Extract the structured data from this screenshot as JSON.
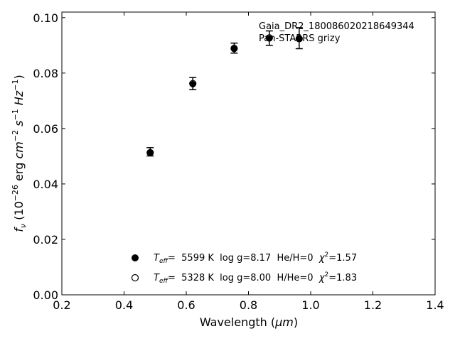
{
  "chart_data": {
    "type": "scatter",
    "xlabel_main": "Wavelength (",
    "xlabel_unit": "μm",
    "xlabel_close": ")",
    "ylabel_parts": {
      "f": "f",
      "nu": "ν",
      "open": " (10",
      "exp1": "−26",
      "erg": " erg ",
      "cm": "cm",
      "exp2": "−2",
      "s": " s",
      "exp3": "−1",
      "hz": " Hz",
      "exp4": "−1",
      "close": ")"
    },
    "xlim": [
      0.2,
      1.4
    ],
    "ylim": [
      0.0,
      0.102
    ],
    "x_ticks": [
      0.2,
      0.4,
      0.6,
      0.8,
      1.0,
      1.2,
      1.4
    ],
    "x_tick_labels": [
      "0.2",
      "0.4",
      "0.6",
      "0.8",
      "1.0",
      "1.2",
      "1.4"
    ],
    "y_ticks": [
      0.0,
      0.02,
      0.04,
      0.06,
      0.08,
      0.1
    ],
    "y_tick_labels": [
      "0.00",
      "0.02",
      "0.04",
      "0.06",
      "0.08",
      "0.10"
    ],
    "grid": false,
    "annotations": [
      "Gaia_DR2_180086020218649344",
      "Pan-STARRS grizy"
    ],
    "observed": {
      "x": [
        0.484,
        0.621,
        0.754,
        0.867,
        0.963
      ],
      "y": [
        0.0516,
        0.0762,
        0.089,
        0.0926,
        0.0926
      ],
      "yerr": [
        0.0015,
        0.0022,
        0.0018,
        0.0026,
        0.0038
      ]
    },
    "model_filled": {
      "x": [
        0.484,
        0.621,
        0.754,
        0.867,
        0.963
      ],
      "y": [
        0.0513,
        0.076,
        0.0887,
        0.0925,
        0.0923
      ]
    },
    "model_open": {
      "x": [
        0.484,
        0.621,
        0.754,
        0.867,
        0.963
      ],
      "y": [
        0.0513,
        0.0762,
        0.0889,
        0.0927,
        0.0924
      ]
    },
    "legend_placement": "lower-center",
    "legend": [
      {
        "marker": "filled",
        "T": "T",
        "eff": "eff",
        "text_main": "=  5599 K  log g=8.17  He/H=0  ",
        "chi": "χ",
        "chi_exp": "2",
        "chi_val": "=1.57"
      },
      {
        "marker": "open",
        "T": "T",
        "eff": "eff",
        "text_main": "=  5328 K  log g=8.00  H/He=0  ",
        "chi": "χ",
        "chi_exp": "2",
        "chi_val": "=1.83"
      }
    ]
  }
}
